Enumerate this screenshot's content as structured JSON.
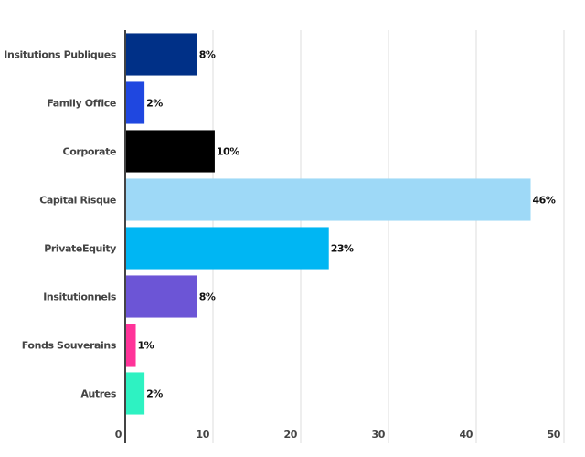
{
  "chart_data": {
    "type": "bar",
    "orientation": "horizontal",
    "title": "",
    "xlabel": "",
    "ylabel": "",
    "xlim": [
      0,
      50
    ],
    "grid": true,
    "x_ticks": [
      "0",
      "10",
      "20",
      "30",
      "40",
      "50"
    ],
    "x_tick_values": [
      0,
      10,
      20,
      30,
      40,
      50
    ],
    "categories": [
      "Insitutions Publiques",
      "Family Office",
      "Corporate",
      "Capital Risque",
      "PrivateEquity",
      "Insitutionnels",
      "Fonds Souverains",
      "Autres"
    ],
    "values": [
      8.2,
      2.2,
      10.2,
      46.2,
      23.2,
      8.2,
      1.2,
      2.2
    ],
    "data_labels": [
      "8%",
      "2%",
      "10%",
      "46%",
      "23%",
      "8%",
      "1%",
      "2%"
    ],
    "colors": [
      "#003087",
      "#1f47e0",
      "#000000",
      "#9ed9f7",
      "#00b6f3",
      "#6c55d6",
      "#ff3399",
      "#2ef2c2"
    ]
  }
}
